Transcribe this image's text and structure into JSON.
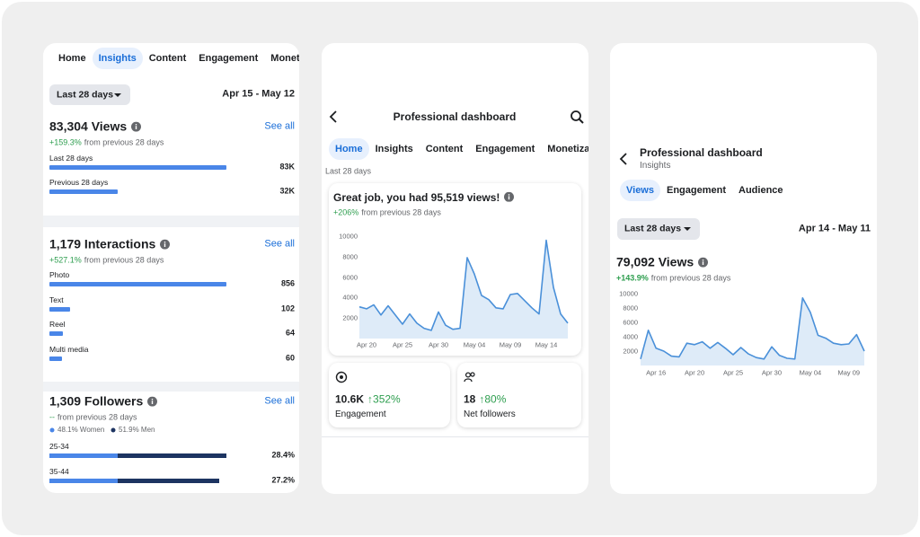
{
  "insights": {
    "tabs": [
      "Home",
      "Insights",
      "Content",
      "Engagement",
      "Monetiza"
    ],
    "active_tab": 1,
    "range": "Last 28 days",
    "dates": "Apr 15 - May 12",
    "bar_color": "#4a86e8",
    "views": {
      "title": "83,304 Views",
      "change": "+159.3%",
      "change_note": "from previous 28 days",
      "link": "See all",
      "bars": [
        {
          "label": "Last 28 days",
          "value": 83000,
          "value_label": "83K"
        },
        {
          "label": "Previous 28 days",
          "value": 32000,
          "value_label": "32K"
        }
      ]
    },
    "interactions": {
      "title": "1,179 Interactions",
      "change": "+527.1%",
      "change_note": "from previous 28 days",
      "link": "See all",
      "bars": [
        {
          "label": "Photo",
          "value": 856
        },
        {
          "label": "Text",
          "value": 102
        },
        {
          "label": "Reel",
          "value": 64
        },
        {
          "label": "Multi media",
          "value": 60
        }
      ]
    },
    "followers": {
      "title": "1,309 Followers",
      "change": "--",
      "change_note": "from previous 28 days",
      "link": "See all",
      "legend": [
        {
          "name": "48.1% Women",
          "color": "#4a86e8"
        },
        {
          "name": "51.9% Men",
          "color": "#1d3461"
        }
      ],
      "rows": [
        {
          "label": "25-34",
          "value": 28.4,
          "value_label": "28.4%",
          "segments": [
            11.0,
            17.4
          ]
        },
        {
          "label": "35-44",
          "value": 27.2,
          "value_label": "27.2%",
          "segments": [
            11.0,
            16.2
          ]
        }
      ]
    }
  },
  "dashboard": {
    "title": "Professional dashboard",
    "tabs": [
      "Home",
      "Insights",
      "Content",
      "Engagement",
      "Monetiza"
    ],
    "active_tab": 0,
    "range": "Last 28 days",
    "card": {
      "title": "Great job, you had 95,519 views!",
      "change": "+206%",
      "change_note": "from previous 28 days",
      "chart": {
        "type": "line",
        "color": "#4a90d9",
        "categories": [
          null,
          "Apr 20",
          null,
          null,
          null,
          null,
          "Apr 25",
          null,
          null,
          null,
          null,
          "Apr 30",
          null,
          null,
          null,
          null,
          "May 04",
          null,
          null,
          null,
          null,
          "May 09",
          null,
          null,
          null,
          null,
          "May 14",
          null,
          null,
          null
        ],
        "values": [
          3100,
          2900,
          3300,
          2300,
          3200,
          2300,
          1400,
          2400,
          1500,
          1000,
          800,
          2600,
          1300,
          900,
          1000,
          7900,
          6300,
          4200,
          3800,
          3000,
          2900,
          4300,
          4400,
          3700,
          3000,
          2400,
          9600,
          5000,
          2400,
          1500
        ],
        "ylim": [
          0,
          10000
        ],
        "yticks": [
          2000,
          4000,
          6000,
          8000,
          10000
        ]
      }
    },
    "stats": [
      {
        "value": "10.6K",
        "change": "↑352%",
        "label": "Engagement"
      },
      {
        "value": 18,
        "change": "↑80%",
        "label": "Net followers"
      }
    ]
  },
  "views": {
    "title": "Professional dashboard",
    "subtitle": "Insights",
    "tabs": [
      "Views",
      "Engagement",
      "Audience"
    ],
    "active_tab": 0,
    "range": "Last 28 days",
    "dates": "Apr 14 - May 11",
    "headline": "79,092 Views",
    "change": "+143.9%",
    "change_note": "from previous 28 days",
    "chart": {
      "type": "line",
      "color": "#4a90d9",
      "categories": [
        null,
        null,
        "Apr 16",
        null,
        null,
        null,
        null,
        "Apr 20",
        null,
        null,
        null,
        null,
        "Apr 25",
        null,
        null,
        null,
        null,
        "Apr 30",
        null,
        null,
        null,
        null,
        "May 04",
        null,
        null,
        null,
        null,
        "May 09",
        null,
        null
      ],
      "values": [
        900,
        4900,
        2400,
        2000,
        1300,
        1200,
        3100,
        2900,
        3300,
        2400,
        3200,
        2400,
        1500,
        2500,
        1600,
        1100,
        900,
        2600,
        1400,
        1000,
        900,
        9400,
        7400,
        4200,
        3800,
        3100,
        2900,
        3000,
        4300,
        2000
      ],
      "ylim": [
        0,
        10000
      ],
      "yticks": [
        2000,
        4000,
        6000,
        8000,
        10000
      ]
    }
  }
}
